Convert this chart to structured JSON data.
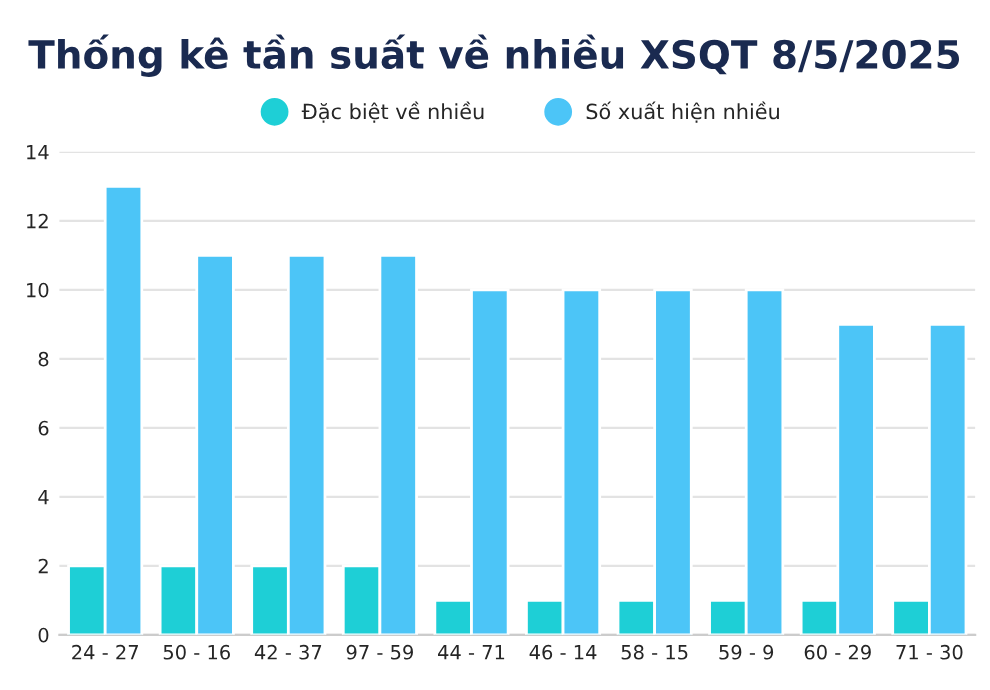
{
  "chart_data": {
    "type": "bar",
    "title": "Thống kê tần suất về nhiều XSQT 8/5/2025",
    "categories": [
      "24 - 27",
      "50 - 16",
      "42 - 37",
      "97 - 59",
      "44 - 71",
      "46 - 14",
      "58 - 15",
      "59 - 9",
      "60 - 29",
      "71 - 30"
    ],
    "series": [
      {
        "name": "Đặc biệt về nhiều",
        "color": "#1ecfd6",
        "values": [
          2,
          2,
          2,
          2,
          1,
          1,
          1,
          1,
          1,
          1
        ]
      },
      {
        "name": "Số xuất hiện nhiều",
        "color": "#4cc5f7",
        "values": [
          13,
          11,
          11,
          11,
          10,
          10,
          10,
          10,
          9,
          9
        ]
      }
    ],
    "ylim": [
      0,
      14
    ],
    "yticks": [
      0,
      2,
      4,
      6,
      8,
      10,
      12,
      14
    ],
    "grid": "y",
    "legend": "top"
  }
}
